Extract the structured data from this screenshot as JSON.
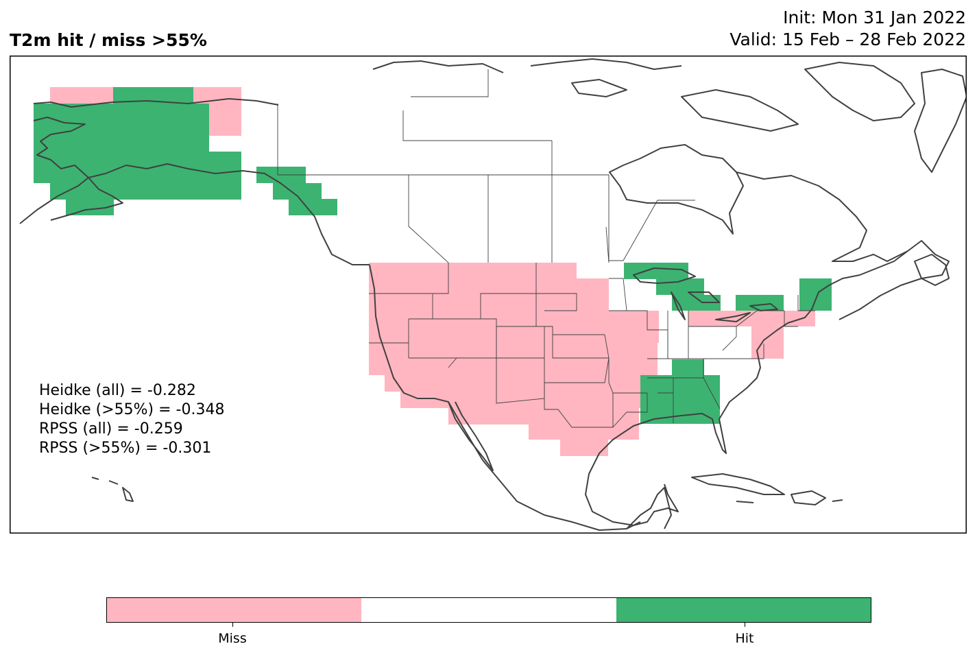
{
  "figure": {
    "title": "T2m hit / miss  >55%",
    "init": "Init: Mon 31 Jan 2022",
    "valid": "Valid: 15 Feb – 28 Feb 2022"
  },
  "stats": [
    "Heidke (all) = -0.282",
    "Heidke (>55%) = -0.348",
    "RPSS (all) = -0.259",
    "RPSS (>55%) = -0.301"
  ],
  "colors": {
    "miss": "#ffb6c1",
    "neutral": "#ffffff",
    "hit": "#3cb371",
    "coast": "#404040"
  },
  "colorbar": {
    "categories": [
      "Miss",
      "",
      "Hit"
    ],
    "tick_labels": [
      "Miss",
      "Hit"
    ]
  },
  "map": {
    "projection": "PlateCarree",
    "extent_lon": [
      -175,
      -60
    ],
    "extent_lat": [
      13,
      73
    ],
    "regions": [
      {
        "category": "miss",
        "area": "Western Alaska / Bering coast"
      },
      {
        "category": "hit",
        "area": "Interior Alaska"
      },
      {
        "category": "hit",
        "area": "Alaska panhandle"
      },
      {
        "category": "miss",
        "area": "Western and central United States"
      },
      {
        "category": "miss",
        "area": "Southern Plains and Texas"
      },
      {
        "category": "hit",
        "area": "Upper Great Lakes"
      },
      {
        "category": "hit",
        "area": "Lower Great Lakes / New York"
      },
      {
        "category": "hit",
        "area": "Northern New England"
      },
      {
        "category": "miss",
        "area": "Mid-Atlantic and southern New England"
      },
      {
        "category": "hit",
        "area": "Southeastern United States"
      }
    ]
  }
}
